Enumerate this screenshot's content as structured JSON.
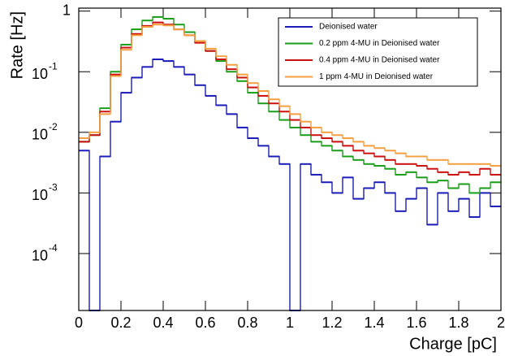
{
  "chart_data": {
    "type": "histogram",
    "log_y": true,
    "x_label": "Charge [pC]",
    "y_label": "Rate [Hz]",
    "bins": [
      0,
      0.05,
      0.1,
      0.15,
      0.2,
      0.25,
      0.3,
      0.35,
      0.4,
      0.45,
      0.5,
      0.55,
      0.6,
      0.65,
      0.7,
      0.75,
      0.8,
      0.85,
      0.9,
      0.95,
      1,
      1.05,
      1.1,
      1.15,
      1.2,
      1.25,
      1.3,
      1.35,
      1.4,
      1.45,
      1.5,
      1.55,
      1.6,
      1.65,
      1.7,
      1.75,
      1.8,
      1.85,
      1.9,
      1.95,
      2
    ],
    "xlim": [
      0,
      2
    ],
    "xticks": [
      0,
      0.2,
      0.4,
      0.6,
      0.8,
      1,
      1.2,
      1.4,
      1.6,
      1.8,
      2
    ],
    "ylim": [
      1.15e-05,
      1.12
    ],
    "yticks": [
      {
        "value": 0.0001,
        "label": "10",
        "exponent": "-4"
      },
      {
        "value": 0.001,
        "label": "10",
        "exponent": "-3"
      },
      {
        "value": 0.01,
        "label": "10",
        "exponent": "-2"
      },
      {
        "value": 0.1,
        "label": "10",
        "exponent": "-1"
      },
      1
    ],
    "legend_position": "top-right",
    "series": [
      {
        "name": "Deionised water",
        "color": "#1c1cb8",
        "values": [
          0.005,
          0,
          0.004,
          0.015,
          0.045,
          0.08,
          0.12,
          0.16,
          0.15,
          0.12,
          0.09,
          0.06,
          0.04,
          0.028,
          0.02,
          0.012,
          0.008,
          0.006,
          0.004,
          0.003,
          0,
          0.003,
          0.002,
          0.0015,
          0.001,
          0.0018,
          0.0008,
          0.0012,
          0.0015,
          0.001,
          0.0005,
          0.0008,
          0.0012,
          0.0003,
          0.001,
          0.0005,
          0.0008,
          0.0004,
          0.001,
          0.0006
        ]
      },
      {
        "name": "0.2 ppm 4-MU in Deionised water",
        "color": "#1a9e1a",
        "values": [
          0.007,
          0.009,
          0.025,
          0.1,
          0.28,
          0.5,
          0.7,
          0.8,
          0.75,
          0.6,
          0.45,
          0.32,
          0.22,
          0.15,
          0.1,
          0.07,
          0.045,
          0.03,
          0.022,
          0.016,
          0.012,
          0.009,
          0.007,
          0.006,
          0.005,
          0.004,
          0.0035,
          0.003,
          0.0028,
          0.0025,
          0.002,
          0.0022,
          0.0018,
          0.0015,
          0.0016,
          0.0012,
          0.0014,
          0.001,
          0.0012,
          0.0015
        ]
      },
      {
        "name": "0.4 ppm 4-MU in Deionised water",
        "color": "#cc1010",
        "values": [
          0.007,
          0.009,
          0.022,
          0.09,
          0.25,
          0.42,
          0.57,
          0.65,
          0.6,
          0.5,
          0.4,
          0.3,
          0.22,
          0.16,
          0.11,
          0.08,
          0.055,
          0.04,
          0.03,
          0.022,
          0.016,
          0.012,
          0.009,
          0.008,
          0.007,
          0.006,
          0.005,
          0.0045,
          0.004,
          0.0035,
          0.003,
          0.003,
          0.0028,
          0.0025,
          0.0022,
          0.002,
          0.0022,
          0.002,
          0.0025,
          0.002
        ]
      },
      {
        "name": "1 ppm 4-MU in Deionised water",
        "color": "#f5a040",
        "values": [
          0.008,
          0.01,
          0.02,
          0.085,
          0.23,
          0.4,
          0.55,
          0.6,
          0.58,
          0.5,
          0.4,
          0.32,
          0.24,
          0.18,
          0.13,
          0.09,
          0.065,
          0.048,
          0.035,
          0.027,
          0.02,
          0.015,
          0.012,
          0.01,
          0.009,
          0.008,
          0.007,
          0.006,
          0.0055,
          0.005,
          0.0045,
          0.004,
          0.004,
          0.0035,
          0.0035,
          0.003,
          0.003,
          0.003,
          0.003,
          0.0028
        ]
      }
    ]
  }
}
